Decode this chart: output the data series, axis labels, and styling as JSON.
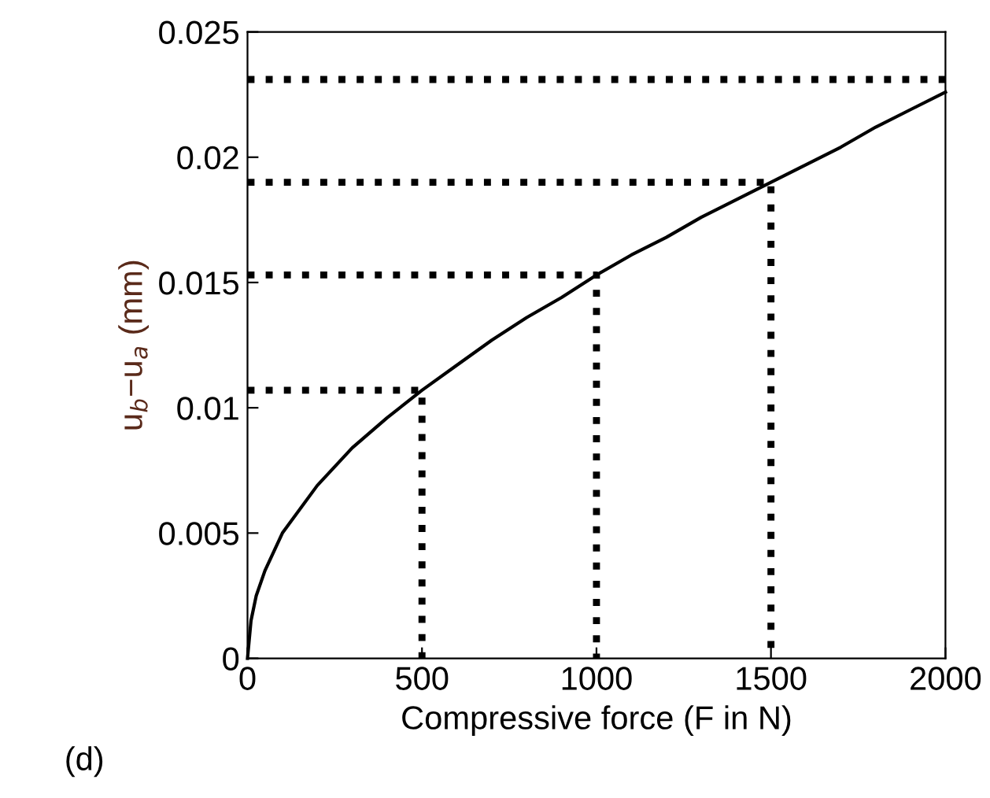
{
  "chart_data": {
    "type": "line",
    "xlabel": "Compressive force (F in N)",
    "ylabel": "u$_{b}$−u$_{a}$ (mm)",
    "annotations": [
      "(d)"
    ],
    "xlim": [
      0,
      2000
    ],
    "xticks": [
      0,
      500,
      1000,
      1500,
      2000
    ],
    "ylim": [
      0,
      0.025
    ],
    "yticks": [
      0,
      0.005,
      0.01,
      0.015,
      0.02,
      0.025
    ],
    "grid": false,
    "legend": false,
    "series": [
      {
        "color": "#000000",
        "line_style": "solid",
        "x": [
          0,
          10,
          25,
          50,
          100,
          200,
          300,
          400,
          500,
          600,
          700,
          800,
          900,
          1000,
          1100,
          1200,
          1300,
          1400,
          1500,
          1600,
          1700,
          1800,
          1900,
          2000
        ],
        "values": [
          0,
          0.0015,
          0.0025,
          0.0035,
          0.005,
          0.0069,
          0.0084,
          0.0096,
          0.0107,
          0.0117,
          0.0127,
          0.0136,
          0.0144,
          0.0153,
          0.0161,
          0.0168,
          0.0176,
          0.0183,
          0.019,
          0.0197,
          0.0204,
          0.0212,
          0.0219,
          0.0226
        ]
      },
      {
        "color": "#000000",
        "line_style": "dotted",
        "x": [
          0,
          500,
          500
        ],
        "values": [
          0.0107,
          0.0107,
          0
        ]
      },
      {
        "color": "#000000",
        "line_style": "dotted",
        "x": [
          0,
          1000,
          1000
        ],
        "values": [
          0.0153,
          0.0153,
          0
        ]
      },
      {
        "color": "#000000",
        "line_style": "dotted",
        "x": [
          0,
          1500,
          1500
        ],
        "values": [
          0.019,
          0.019,
          0
        ]
      },
      {
        "color": "#000000",
        "line_style": "dotted",
        "x": [
          0,
          2000
        ],
        "values": [
          0.0231,
          0.0231
        ]
      }
    ]
  }
}
